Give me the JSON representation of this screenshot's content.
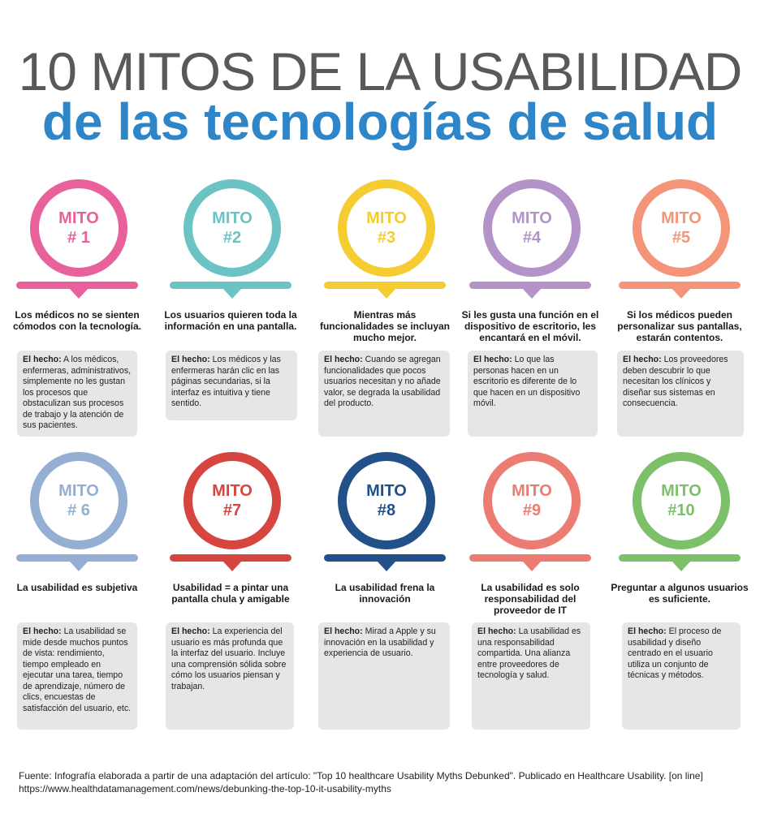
{
  "title_line1": "10 MITOS DE LA USABILIDAD",
  "title_line2": "de las tecnologías de salud",
  "fact_label": "El hecho:",
  "myths": [
    {
      "mito": "MITO",
      "num": "# 1",
      "color": "#e8619a",
      "heading": "Los médicos no se sienten cómodos con la tecnología.",
      "fact": "A los médicos, enfermeras, administrativos, simplemente no les gustan los procesos que obstaculizan sus procesos de trabajo y la atención de sus pacientes."
    },
    {
      "mito": "MITO",
      "num": "#2",
      "color": "#6cc3c3",
      "heading": "Los usuarios quieren toda la información en una pantalla.",
      "fact": "Los médicos y las enfermeras harán clic en las páginas secundarias, si la interfaz es intuitiva y tiene sentido."
    },
    {
      "mito": "MITO",
      "num": "#3",
      "color": "#f5cd32",
      "heading": "Mientras más funcionalidades se incluyan mucho mejor.",
      "fact": "Cuando se agregan funcionalidades que pocos usuarios necesitan y no añade valor, se degrada la usabilidad del producto."
    },
    {
      "mito": "MITO",
      "num": "#4",
      "color": "#b393c8",
      "heading": "Si les gusta una función en el dispositivo de escritorio, les encantará en el móvil.",
      "fact": "Lo que las personas hacen en un escritorio es diferente de lo que hacen en un dispositivo móvil."
    },
    {
      "mito": "MITO",
      "num": "#5",
      "color": "#f4957a",
      "heading": "Si los médicos pueden personalizar sus pantallas, estarán contentos.",
      "fact": "Los proveedores deben descubrir lo que necesitan los clínicos y diseñar sus sistemas en consecuencia."
    },
    {
      "mito": "MITO",
      "num": "# 6",
      "color": "#95aed3",
      "heading": "La usabilidad es subjetiva",
      "fact": "La usabilidad se mide desde muchos puntos de vista: rendimiento, tiempo empleado en ejecutar una tarea, tiempo de aprendizaje, número de clics, encuestas de satisfacción del usuario, etc."
    },
    {
      "mito": "MITO",
      "num": "#7",
      "color": "#d64540",
      "heading": "Usabilidad = a pintar una pantalla chula y amigable",
      "fact": "La experiencia del usuario es más profunda que la interfaz del usuario. Incluye una comprensión sólida sobre cómo los usuarios piensan y trabajan."
    },
    {
      "mito": "MITO",
      "num": "#8",
      "color": "#22518a",
      "heading": "La usabilidad frena la innovación",
      "fact": "Mirad a Apple y su innovación en la usabilidad y experiencia de usuario."
    },
    {
      "mito": "MITO",
      "num": "#9",
      "color": "#ec7c72",
      "heading": "La usabilidad es solo responsabilidad del proveedor de IT",
      "fact": "La usabilidad es una responsabilidad compartida. Una alianza entre proveedores de tecnología y salud."
    },
    {
      "mito": "MITO",
      "num": "#10",
      "color": "#7cc06a",
      "heading": "Preguntar a algunos usuarios es suficiente.",
      "fact": "El proceso de usabilidad y diseño centrado en el usuario utiliza un conjunto de técnicas y métodos."
    }
  ],
  "source_line1": "Fuente: Infografía elaborada a partir de una adaptación del artículo: \"Top 10 healthcare Usability Myths Debunked\". Publicado en Healthcare Usability. [on line]",
  "source_line2": "https://www.healthdatamanagement.com/news/debunking-the-top-10-it-usability-myths"
}
